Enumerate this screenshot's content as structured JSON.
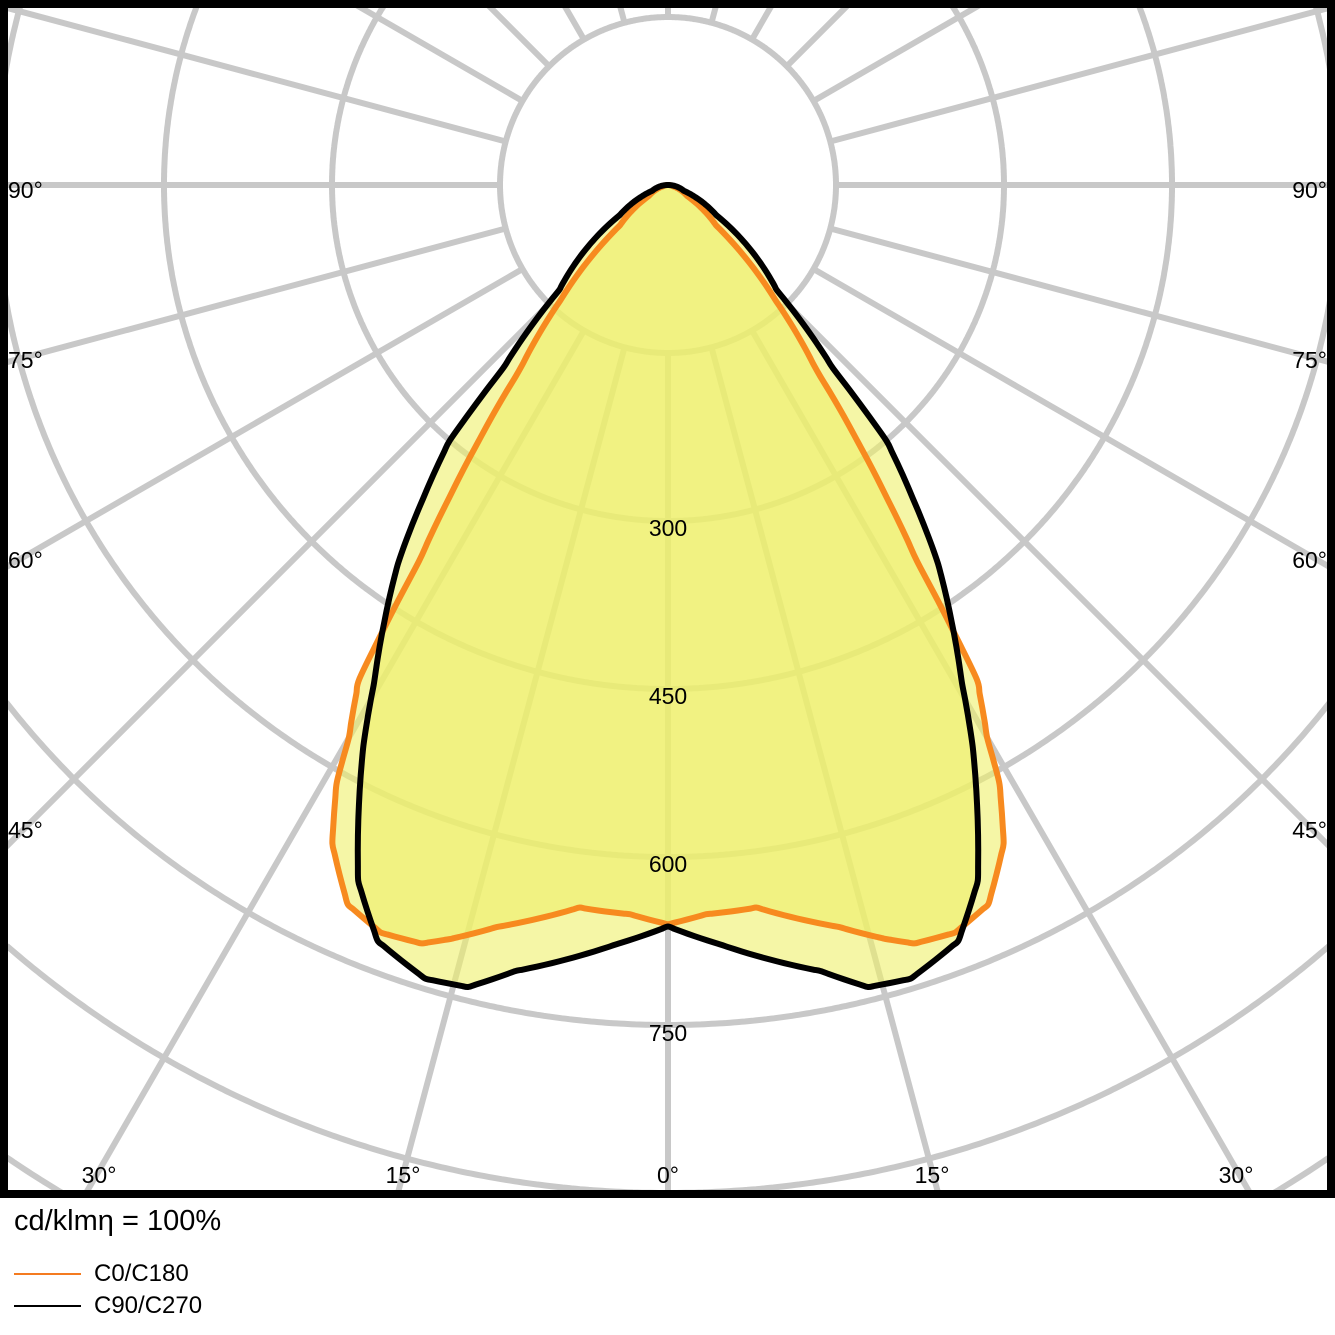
{
  "chart_data": {
    "type": "polar",
    "unit_label": "cd/klmη = 100%",
    "radial_ticks": [
      150,
      300,
      450,
      600,
      750,
      900,
      1050,
      1200,
      1350
    ],
    "radial_tick_labels": [
      "300",
      "450",
      "600",
      "750"
    ],
    "angle_labels": {
      "left": [
        "90°",
        "75°",
        "60°",
        "45°"
      ],
      "bottom": [
        "30°",
        "15°",
        "0°",
        "15°",
        "30°"
      ],
      "right": [
        "90°",
        "75°",
        "60°",
        "45°"
      ]
    },
    "grid": true,
    "legend_placement": "bottom-left",
    "series": [
      {
        "name": "C0/C180",
        "color": "#f47b20",
        "angles_deg": [
          0,
          3,
          7,
          10,
          13,
          16,
          18,
          21,
          24,
          27,
          29,
          30,
          32,
          33.5,
          35,
          36.5,
          38.7,
          43,
          50,
          60,
          75,
          90
        ],
        "cd": [
          660,
          652,
          650,
          665,
          680,
          700,
          712,
          715,
          703,
          660,
          610,
          570,
          520,
          403,
          340,
          284,
          212,
          141,
          56,
          20,
          5,
          0
        ]
      },
      {
        "name": "C90/C270",
        "color": "#000000",
        "angles_deg": [
          0,
          4,
          8,
          11,
          14,
          17,
          21,
          24,
          26.6,
          28.5,
          30.6,
          33,
          35.6,
          38,
          40.5,
          42,
          46,
          58,
          70,
          90
        ],
        "cd": [
          662,
          680,
          700,
          715,
          738,
          741,
          723,
          680,
          616,
          570,
          515,
          465,
          413,
          355,
          300,
          220,
          135,
          51,
          15,
          0
        ]
      }
    ],
    "fill_color": "#eef06a",
    "grid_color": "#c8c8c8"
  }
}
